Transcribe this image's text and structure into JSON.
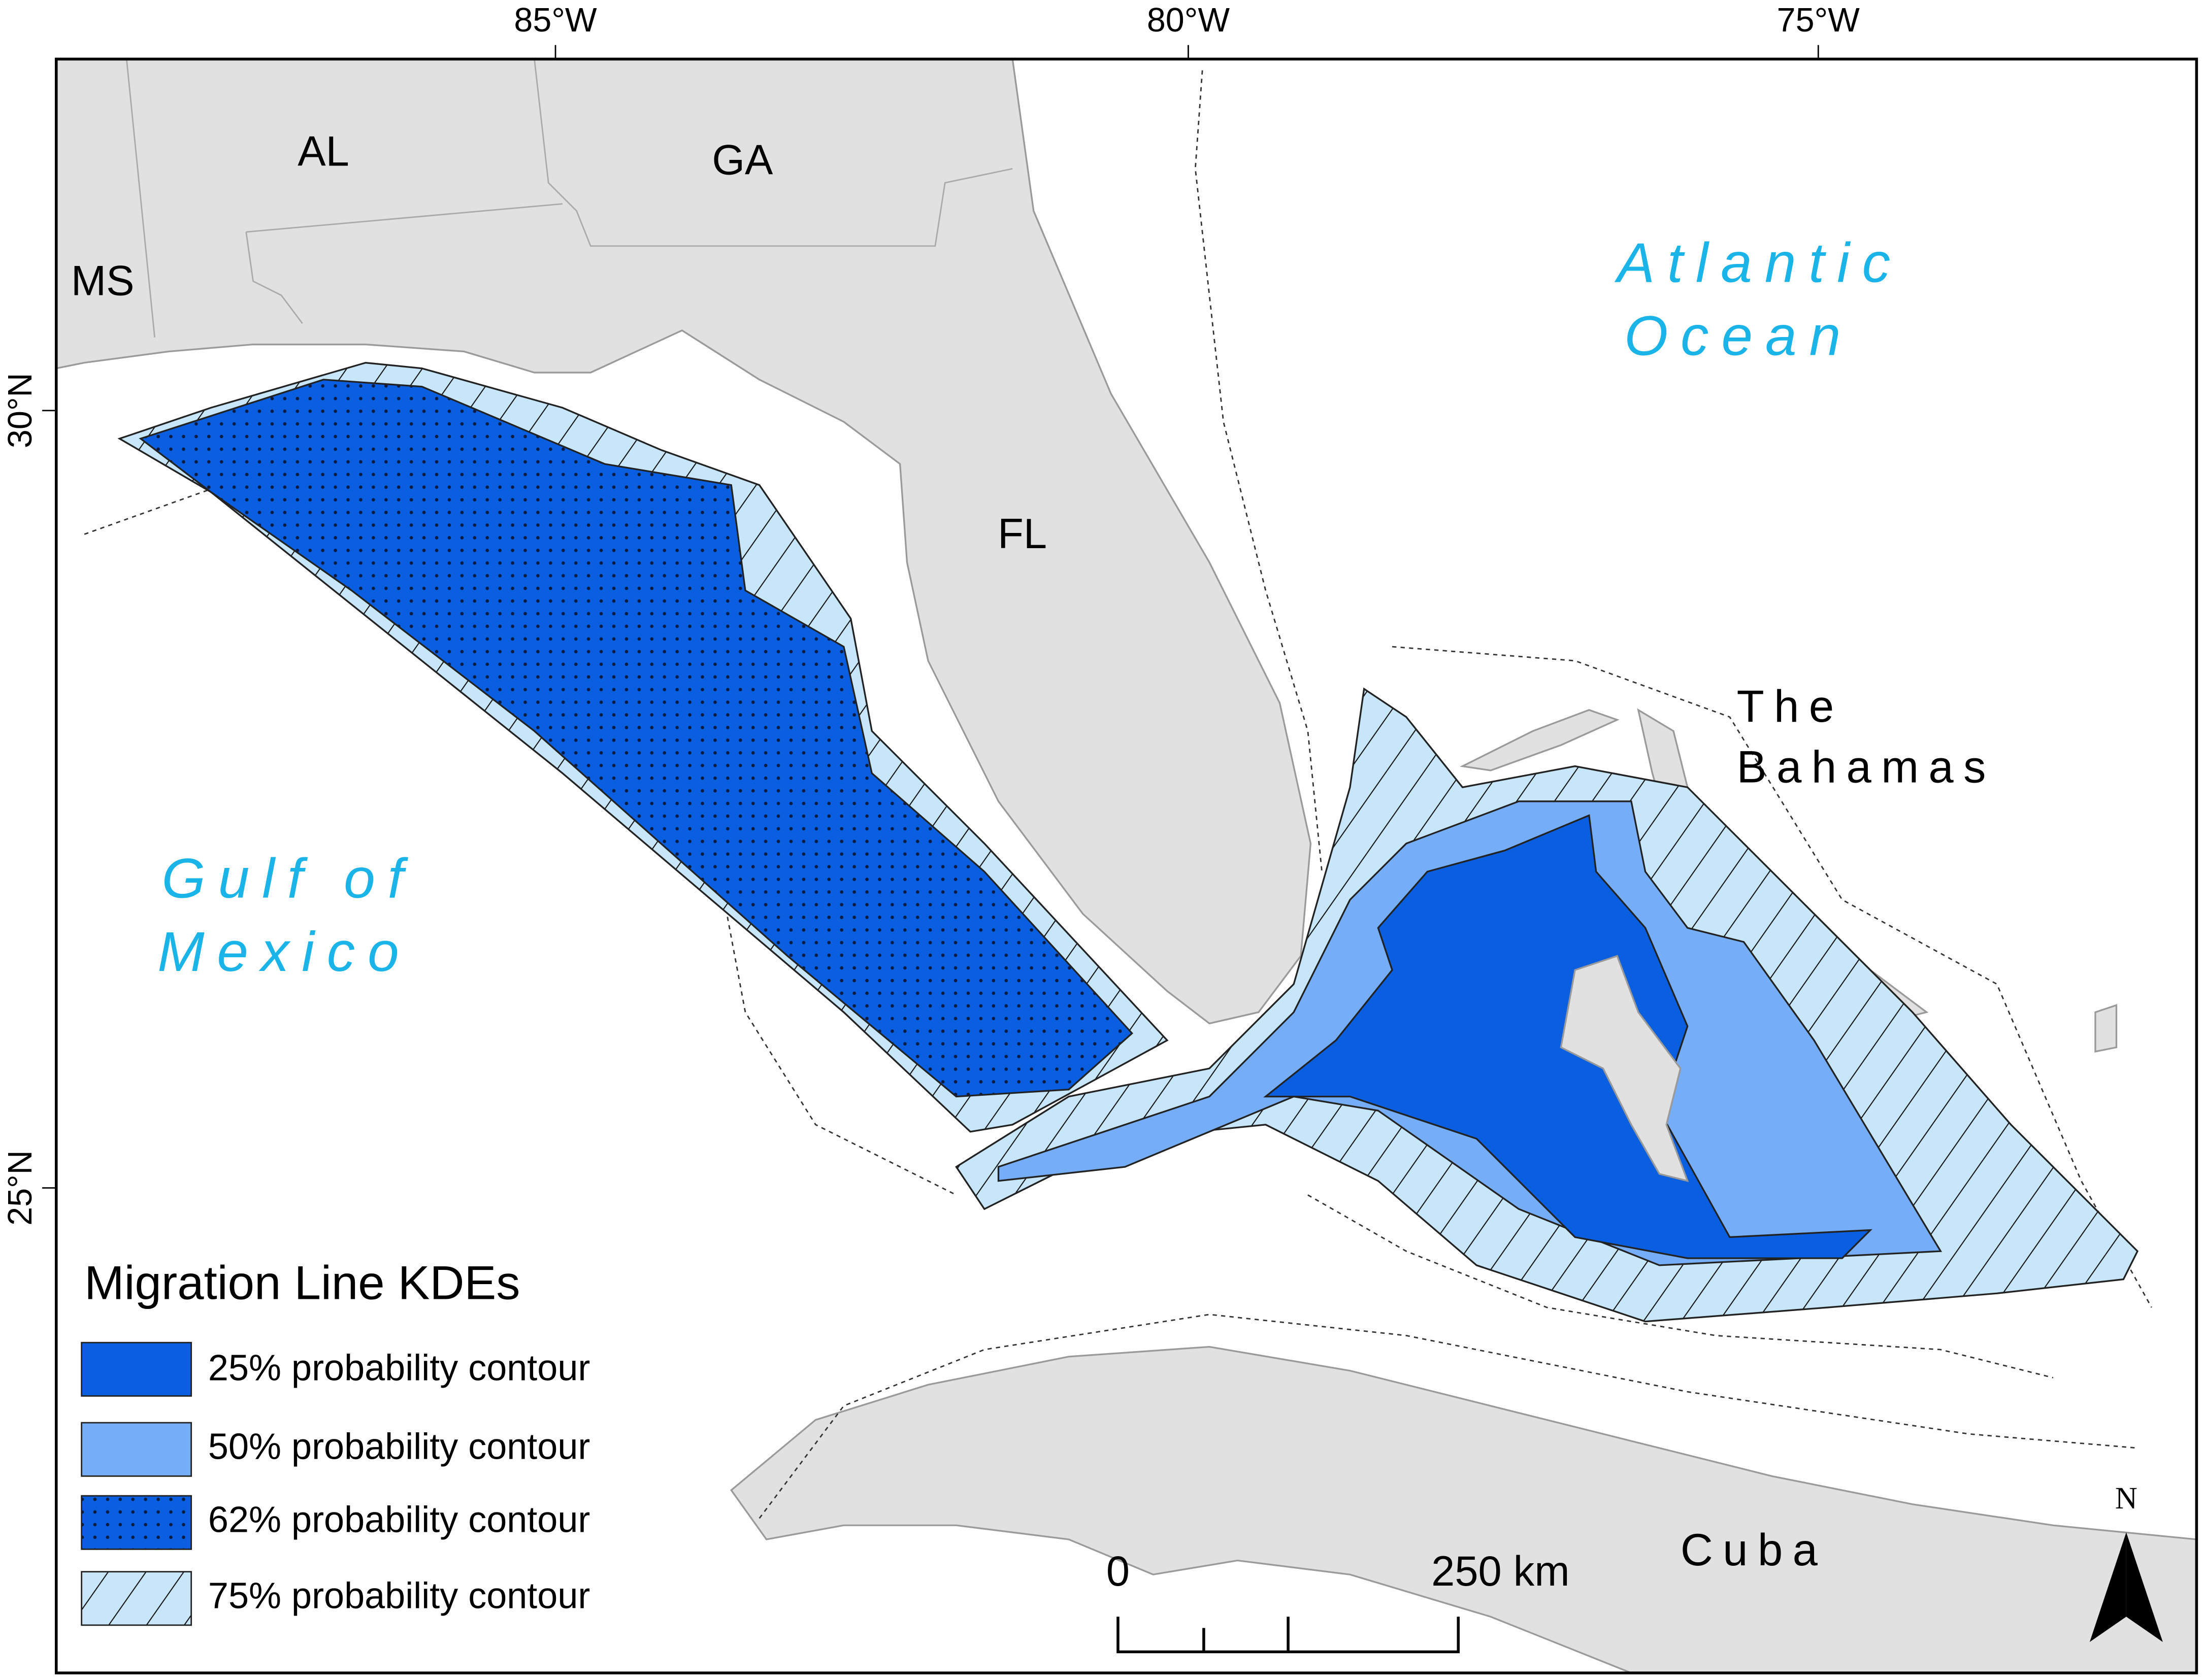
{
  "axes": {
    "longitude_labels": [
      "85°W",
      "80°W",
      "75°W"
    ],
    "latitude_labels": [
      "30°N",
      "25°N"
    ]
  },
  "places": {
    "al": "AL",
    "ga": "GA",
    "ms": "MS",
    "fl": "FL",
    "atlantic_ocean": [
      "Atlantic",
      "Ocean"
    ],
    "gulf_of_mexico": [
      "Gulf of",
      "Mexico"
    ],
    "the_bahamas": [
      "The",
      "Bahamas"
    ],
    "cuba": "Cuba"
  },
  "legend": {
    "title": "Migration Line KDEs",
    "items": [
      "25% probability contour",
      "50% probability contour",
      "62% probability contour",
      "75% probability contour"
    ]
  },
  "scale_bar": {
    "start": "0",
    "end": "250 km"
  },
  "north_arrow": "N"
}
